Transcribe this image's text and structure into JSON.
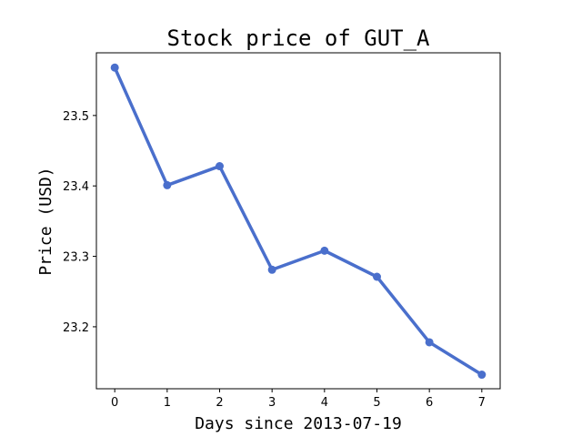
{
  "chart_data": {
    "type": "line",
    "title": "Stock price of GUT_A",
    "xlabel": "Days since 2013-07-19",
    "ylabel": "Price (USD)",
    "x": [
      0,
      1,
      2,
      3,
      4,
      5,
      6,
      7
    ],
    "series": [
      {
        "values": [
          23.568,
          23.401,
          23.428,
          23.281,
          23.308,
          23.271,
          23.178,
          23.132
        ],
        "color": "#4a6fcc",
        "marker": "circle"
      }
    ],
    "xlim": [
      -0.35,
      7.35
    ],
    "ylim": [
      23.112,
      23.589
    ],
    "xticks": [
      0,
      1,
      2,
      3,
      4,
      5,
      6,
      7
    ],
    "xtick_labels": [
      "0",
      "1",
      "2",
      "3",
      "4",
      "5",
      "6",
      "7"
    ],
    "yticks": [
      23.2,
      23.3,
      23.4,
      23.5
    ],
    "ytick_labels": [
      "23.2",
      "23.3",
      "23.4",
      "23.5"
    ],
    "grid": false,
    "legend": "none"
  }
}
